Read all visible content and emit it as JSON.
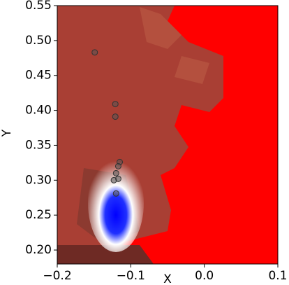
{
  "chart_data": {
    "type": "scatter",
    "xlabel": "X",
    "ylabel": "Y",
    "xlim": [
      -0.2,
      0.1
    ],
    "ylim": [
      0.18,
      0.55
    ],
    "xticks": [
      {
        "value": -0.2,
        "label": "−0.2"
      },
      {
        "value": -0.1,
        "label": "−0.1"
      },
      {
        "value": 0.0,
        "label": "0.0"
      },
      0.1
    ],
    "yticks": [
      {
        "value": 0.2,
        "label": "0.20"
      },
      0.25,
      {
        "value": 0.3,
        "label": "0.30"
      },
      0.35,
      {
        "value": 0.4,
        "label": "0.40"
      },
      0.45,
      {
        "value": 0.5,
        "label": "0.50"
      },
      0.55
    ],
    "series": [
      {
        "color": "#555555",
        "x": [
          -0.149,
          -0.121,
          -0.121,
          -0.115,
          -0.117,
          -0.12,
          -0.117,
          -0.123,
          -0.12
        ],
        "values": [
          0.483,
          0.409,
          0.391,
          0.326,
          0.32,
          0.31,
          0.302,
          0.3,
          0.281
        ]
      }
    ]
  }
}
